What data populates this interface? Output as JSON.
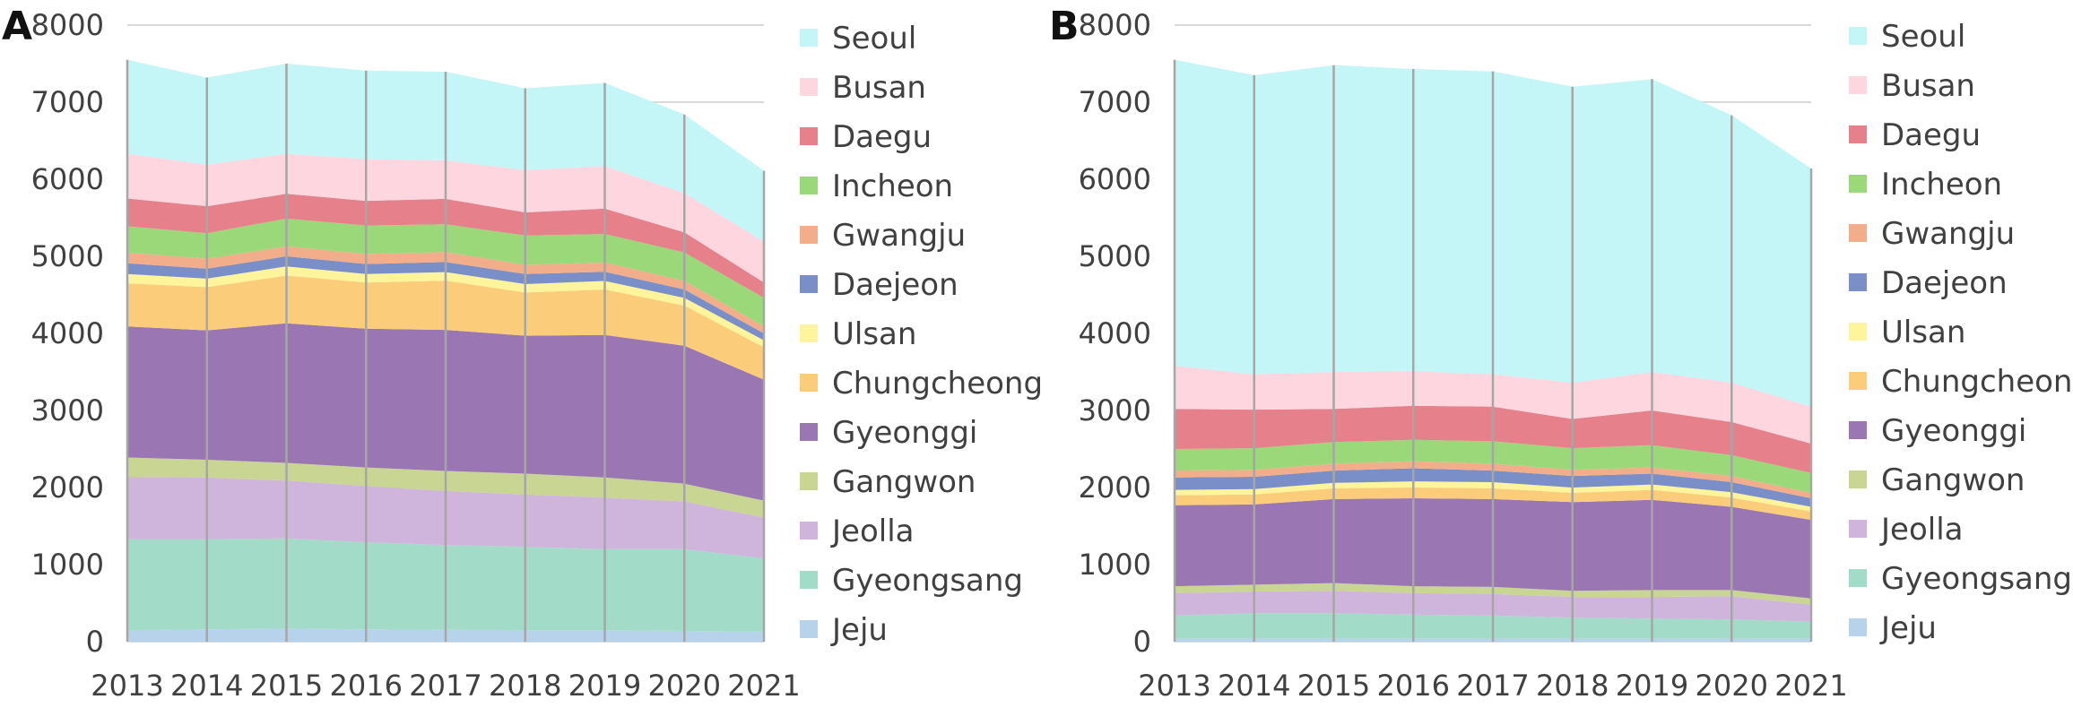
{
  "chart_data": [
    {
      "panel_label": "A",
      "type": "area",
      "stacked": true,
      "x": [
        "2013",
        "2014",
        "2015",
        "2016",
        "2017",
        "2018",
        "2019",
        "2020",
        "2021"
      ],
      "ylim": [
        0,
        8000
      ],
      "yticks": [
        "0",
        "1000",
        "2000",
        "3000",
        "4000",
        "5000",
        "6000",
        "7000",
        "8000"
      ],
      "grid": "horizontal",
      "legend_position": "right",
      "series": [
        {
          "name": "Jeju",
          "color": "#b7d3ec",
          "values": [
            150,
            160,
            170,
            160,
            155,
            150,
            150,
            140,
            130
          ]
        },
        {
          "name": "Gyeongsang",
          "color": "#a3dbc9",
          "values": [
            1180,
            1170,
            1170,
            1130,
            1100,
            1080,
            1050,
            1060,
            950
          ]
        },
        {
          "name": "Jeolla",
          "color": "#cfb4db",
          "values": [
            810,
            800,
            750,
            730,
            700,
            680,
            670,
            620,
            530
          ]
        },
        {
          "name": "Gangwon",
          "color": "#c9d592",
          "values": [
            250,
            230,
            230,
            240,
            260,
            270,
            260,
            230,
            220
          ]
        },
        {
          "name": "Gyeonggi",
          "color": "#9a76b3",
          "values": [
            1700,
            1680,
            1810,
            1800,
            1830,
            1790,
            1850,
            1790,
            1570
          ]
        },
        {
          "name": "Chungcheong",
          "color": "#fbcd7b",
          "values": [
            560,
            560,
            620,
            600,
            640,
            560,
            590,
            520,
            420
          ]
        },
        {
          "name": "Ulsan",
          "color": "#fdf49b",
          "values": [
            120,
            110,
            120,
            110,
            110,
            110,
            110,
            100,
            90
          ]
        },
        {
          "name": "Daejeon",
          "color": "#7a8ec7",
          "values": [
            140,
            130,
            130,
            130,
            130,
            130,
            120,
            110,
            90
          ]
        },
        {
          "name": "Gwangju",
          "color": "#f2ad8a",
          "values": [
            140,
            130,
            130,
            130,
            130,
            120,
            120,
            110,
            90
          ]
        },
        {
          "name": "Incheon",
          "color": "#9bd87a",
          "values": [
            340,
            330,
            360,
            370,
            360,
            380,
            370,
            370,
            370
          ]
        },
        {
          "name": "Daegu",
          "color": "#e6808a",
          "values": [
            360,
            350,
            320,
            320,
            330,
            300,
            330,
            260,
            200
          ]
        },
        {
          "name": "Busan",
          "color": "#fdd6df",
          "values": [
            580,
            540,
            520,
            540,
            500,
            550,
            550,
            510,
            530
          ]
        },
        {
          "name": "Seoul",
          "color": "#c4f6f7",
          "values": [
            1220,
            1130,
            1170,
            1150,
            1150,
            1060,
            1080,
            1020,
            920
          ]
        }
      ]
    },
    {
      "panel_label": "B",
      "type": "area",
      "stacked": true,
      "x": [
        "2013",
        "2014",
        "2015",
        "2016",
        "2017",
        "2018",
        "2019",
        "2020",
        "2021"
      ],
      "ylim": [
        0,
        8000
      ],
      "yticks": [
        "0",
        "1000",
        "2000",
        "3000",
        "4000",
        "5000",
        "6000",
        "7000",
        "8000"
      ],
      "grid": "horizontal",
      "legend_position": "right",
      "series": [
        {
          "name": "Jeju",
          "color": "#b7d3ec",
          "values": [
            40,
            40,
            40,
            40,
            40,
            40,
            40,
            40,
            40
          ]
        },
        {
          "name": "Gyeongsang",
          "color": "#a3dbc9",
          "values": [
            300,
            330,
            330,
            310,
            300,
            270,
            260,
            250,
            220
          ]
        },
        {
          "name": "Jeolla",
          "color": "#cfb4db",
          "values": [
            290,
            280,
            290,
            280,
            280,
            270,
            280,
            300,
            220
          ]
        },
        {
          "name": "Gangwon",
          "color": "#c9d592",
          "values": [
            90,
            90,
            100,
            90,
            90,
            80,
            90,
            80,
            80
          ]
        },
        {
          "name": "Gyeonggi",
          "color": "#9a76b3",
          "values": [
            1050,
            1040,
            1090,
            1140,
            1140,
            1150,
            1170,
            1080,
            1020
          ]
        },
        {
          "name": "Chungcheong",
          "color": "#fbcd7b",
          "values": [
            130,
            130,
            140,
            140,
            140,
            120,
            130,
            120,
            110
          ]
        },
        {
          "name": "Ulsan",
          "color": "#fdf49b",
          "values": [
            70,
            70,
            70,
            80,
            80,
            70,
            70,
            70,
            60
          ]
        },
        {
          "name": "Daejeon",
          "color": "#7a8ec7",
          "values": [
            160,
            160,
            160,
            170,
            150,
            150,
            140,
            130,
            110
          ]
        },
        {
          "name": "Gwangju",
          "color": "#f2ad8a",
          "values": [
            90,
            90,
            90,
            90,
            90,
            80,
            80,
            80,
            70
          ]
        },
        {
          "name": "Incheon",
          "color": "#9bd87a",
          "values": [
            280,
            280,
            280,
            280,
            290,
            280,
            290,
            270,
            260
          ]
        },
        {
          "name": "Daegu",
          "color": "#e6808a",
          "values": [
            520,
            500,
            430,
            440,
            450,
            380,
            450,
            430,
            380
          ]
        },
        {
          "name": "Busan",
          "color": "#fdd6df",
          "values": [
            560,
            460,
            480,
            450,
            420,
            470,
            500,
            510,
            480
          ]
        },
        {
          "name": "Seoul",
          "color": "#c4f6f7",
          "values": [
            3970,
            3880,
            3980,
            3920,
            3930,
            3840,
            3800,
            3470,
            3090
          ]
        }
      ]
    }
  ]
}
